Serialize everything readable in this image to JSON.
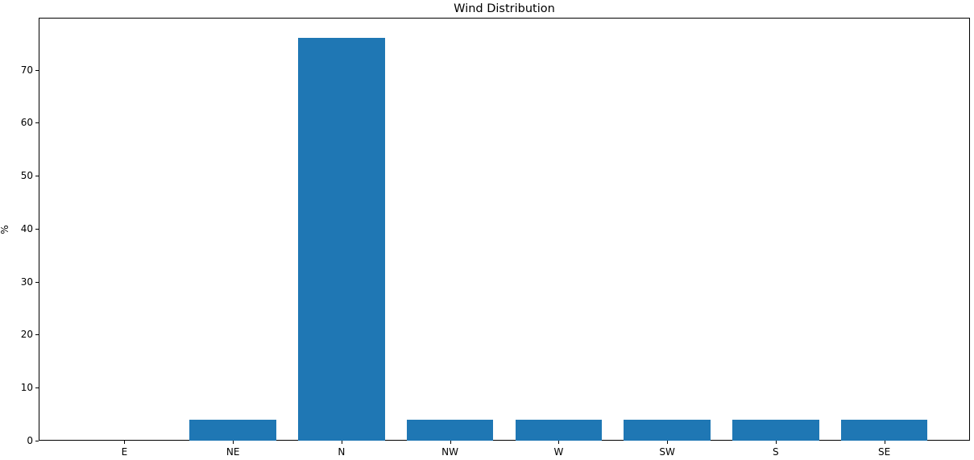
{
  "chart_data": {
    "type": "bar",
    "title": "Wind Distribution",
    "xlabel": "",
    "ylabel": "%",
    "categories": [
      "E",
      "NE",
      "N",
      "NW",
      "W",
      "SW",
      "S",
      "SE"
    ],
    "values": [
      0,
      4,
      76,
      4,
      4,
      4,
      4,
      4
    ],
    "yticks": [
      0,
      10,
      20,
      30,
      40,
      50,
      60,
      70
    ],
    "ylim": [
      0,
      79.8
    ],
    "bar_color": "#1f77b4",
    "bar_width_fraction": 0.8,
    "grid": false,
    "legend_position": "none"
  }
}
